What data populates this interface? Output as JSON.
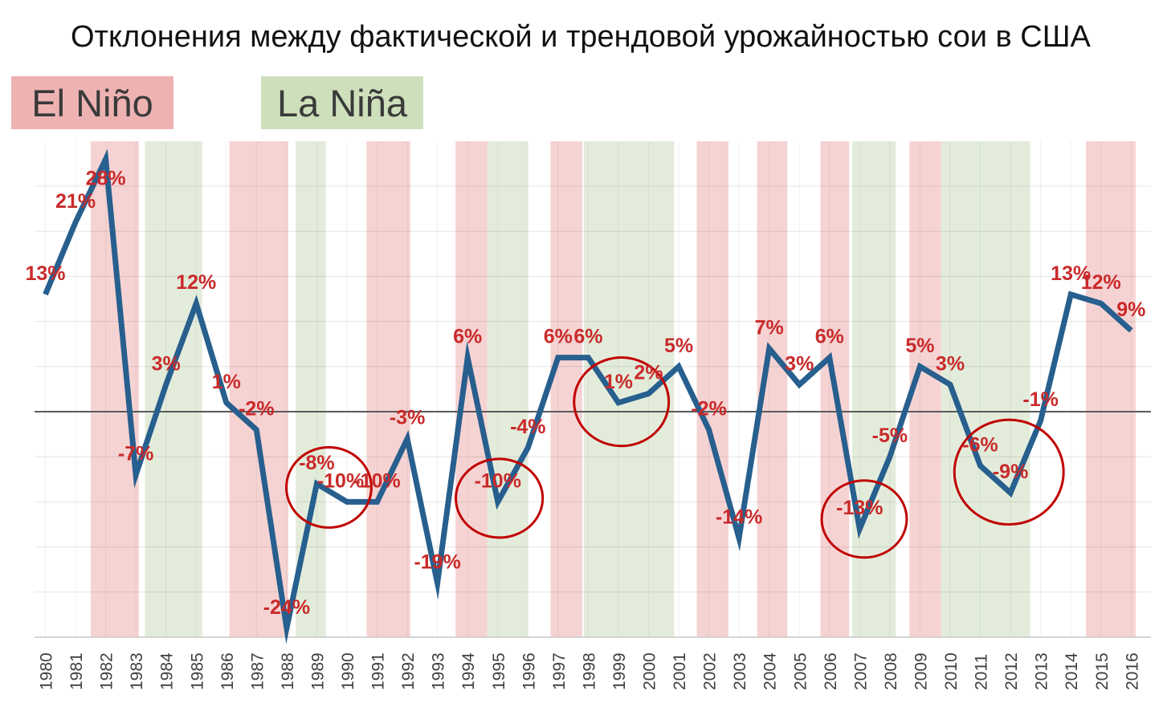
{
  "title": "Отклонения между фактической и трендовой урожайностью сои в США",
  "legend": {
    "el_nino_label": "El Niño",
    "la_nina_label": "La Niña"
  },
  "colors": {
    "el_nino_band": "#f6d3d3",
    "la_nina_band": "#e3ecdb",
    "el_nino_legend": "#eeb2b2",
    "la_nina_legend": "#cde0bb",
    "line": "#275f8e",
    "data_label": "#c92a2a",
    "highlight_circle": "#c00000",
    "zero_line": "#5a5a5a",
    "gridline_h": "rgba(0,0,0,0.10)",
    "gridline_v": "rgba(0,0,0,0.06)",
    "axis_line": "#c9c9c9",
    "tick_label": "#3f3f3f"
  },
  "chart_data": {
    "type": "line",
    "title": "Отклонения между фактической и трендовой урожайностью сои в США",
    "xlabel": "",
    "ylabel": "",
    "ylim": [
      -25,
      30
    ],
    "y_grid_step": 5,
    "grid": true,
    "x": [
      1980,
      1981,
      1982,
      1983,
      1984,
      1985,
      1986,
      1987,
      1988,
      1989,
      1990,
      1991,
      1992,
      1993,
      1994,
      1995,
      1996,
      1997,
      1998,
      1999,
      2000,
      2001,
      2002,
      2003,
      2004,
      2005,
      2006,
      2007,
      2008,
      2009,
      2010,
      2011,
      2012,
      2013,
      2014,
      2015,
      2016
    ],
    "values": [
      13,
      21,
      28,
      -7,
      3,
      12,
      1,
      -2,
      -24,
      -8,
      -10,
      -10,
      -3,
      -19,
      6,
      -10,
      -4,
      6,
      6,
      1,
      2,
      5,
      -2,
      -14,
      7,
      3,
      6,
      -13,
      -5,
      5,
      3,
      -6,
      -9,
      -1,
      13,
      12,
      9
    ],
    "point_labels": [
      "13%",
      "21%",
      "28%",
      "-7%",
      "3%",
      "12%",
      "1%",
      "-2%",
      "-24%",
      "-8%",
      "-10%",
      "-10%",
      "-3%",
      "-19%",
      "6%",
      "-10%",
      "-4%",
      "6%",
      "6%",
      "1%",
      "2%",
      "5%",
      "-2%",
      "-14%",
      "7%",
      "3%",
      "6%",
      "-13%",
      "-5%",
      "5%",
      "3%",
      "-6%",
      "-9%",
      "-1%",
      "13%",
      "12%",
      "9%"
    ],
    "label_offsets": {
      "1982": {
        "dy": 24
      },
      "1990": {
        "dx": -8
      }
    },
    "el_nino_bands": [
      [
        1981.5,
        1983.1
      ],
      [
        1986.1,
        1988.05
      ],
      [
        1990.65,
        1992.1
      ],
      [
        1993.6,
        1994.65
      ],
      [
        1996.75,
        1997.8
      ],
      [
        2001.6,
        2002.65
      ],
      [
        2003.6,
        2004.6
      ],
      [
        2005.7,
        2006.65
      ],
      [
        2008.65,
        2009.7
      ],
      [
        2014.5,
        2016.15
      ]
    ],
    "la_nina_bands": [
      [
        1983.3,
        1985.2
      ],
      [
        1988.3,
        1989.3
      ],
      [
        1994.65,
        1996.0
      ],
      [
        1997.85,
        2000.85
      ],
      [
        2006.75,
        2008.2
      ],
      [
        2009.7,
        2012.65
      ]
    ],
    "highlight_circles": [
      {
        "year": 1989.4,
        "value": -8.4,
        "rx_years": 1.41,
        "ry_pct": 4.45
      },
      {
        "year": 1995.05,
        "value": -9.6,
        "rx_years": 1.44,
        "ry_pct": 4.36
      },
      {
        "year": 1999.1,
        "value": 1.1,
        "rx_years": 1.57,
        "ry_pct": 4.9
      },
      {
        "year": 2007.15,
        "value": -11.9,
        "rx_years": 1.41,
        "ry_pct": 4.27
      },
      {
        "year": 2011.95,
        "value": -6.7,
        "rx_years": 1.81,
        "ry_pct": 5.8
      }
    ]
  }
}
